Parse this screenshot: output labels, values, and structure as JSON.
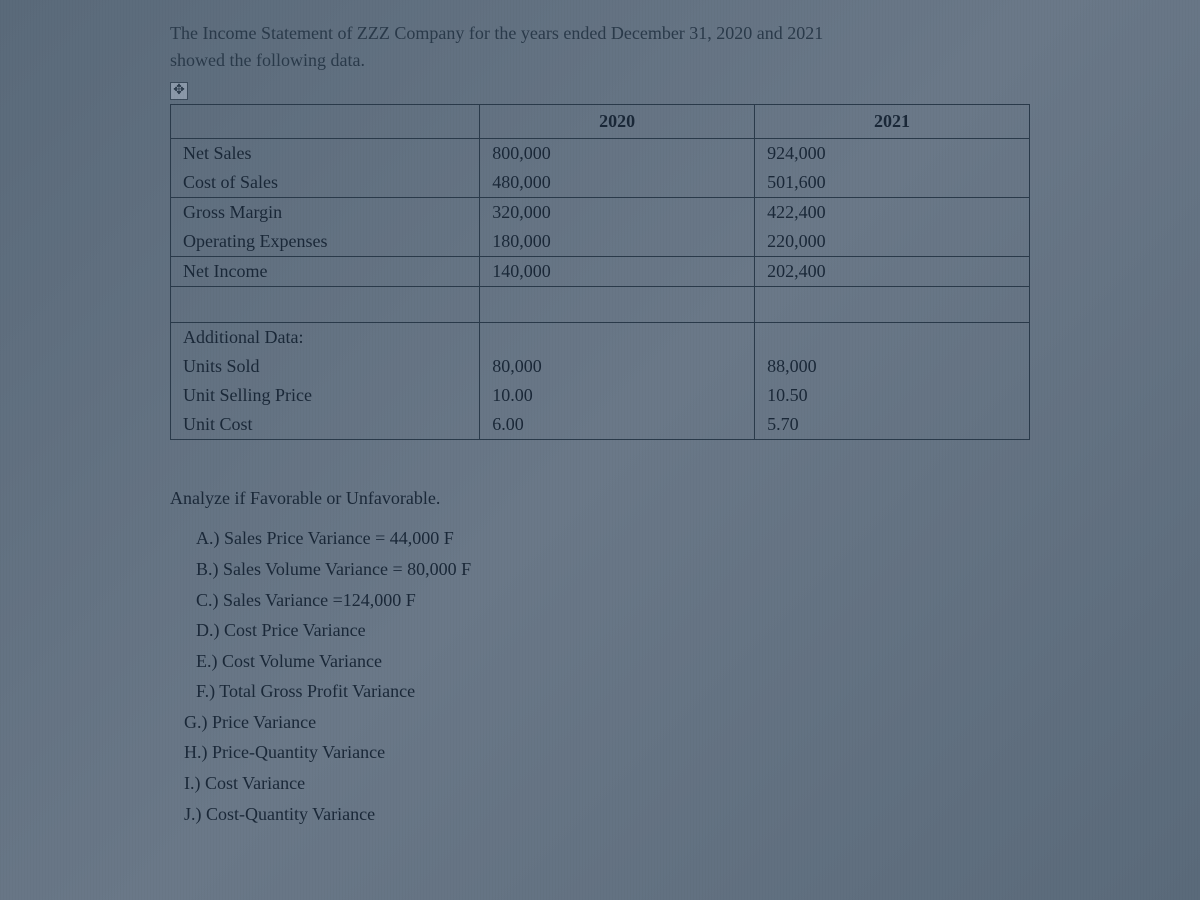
{
  "intro_line1": "The Income Statement of ZZZ Company for the years ended December 31, 2020 and 2021",
  "intro_line2": "showed the following data.",
  "move_icon_glyph": "✥",
  "table": {
    "headers": [
      "",
      "2020",
      "2021"
    ],
    "income_rows": [
      {
        "label": "Net Sales",
        "y2020": "800,000",
        "y2021": "924,000"
      },
      {
        "label": "Cost of Sales",
        "y2020": "480,000",
        "y2021": "501,600"
      },
      {
        "label": "Gross Margin",
        "y2020": "320,000",
        "y2021": "422,400"
      },
      {
        "label": "Operating Expenses",
        "y2020": "180,000",
        "y2021": "220,000"
      },
      {
        "label": "Net Income",
        "y2020": "140,000",
        "y2021": "202,400"
      }
    ],
    "additional_header": "Additional Data:",
    "additional_rows": [
      {
        "label": "Units Sold",
        "y2020": "80,000",
        "y2021": "88,000"
      },
      {
        "label": "Unit Selling Price",
        "y2020": "10.00",
        "y2021": "10.50"
      },
      {
        "label": "Unit Cost",
        "y2020": "6.00",
        "y2021": "5.70"
      }
    ]
  },
  "analysis": {
    "title": "Analyze if Favorable or Unfavorable.",
    "items": [
      "A.) Sales Price Variance = 44,000 F",
      "B.) Sales Volume Variance = 80,000 F",
      "C.) Sales Variance =124,000 F",
      "D.) Cost Price Variance",
      "E.) Cost Volume Variance",
      "F.) Total Gross Profit Variance",
      "G.) Price Variance",
      "H.) Price-Quantity Variance",
      "I.)  Cost Variance",
      "J.)  Cost-Quantity Variance"
    ]
  },
  "colors": {
    "background": "#6a7888",
    "text": "#1a2838",
    "border": "#2a3a4a"
  },
  "typography": {
    "font_family": "Georgia, Times New Roman, serif",
    "base_fontsize_pt": 14
  }
}
